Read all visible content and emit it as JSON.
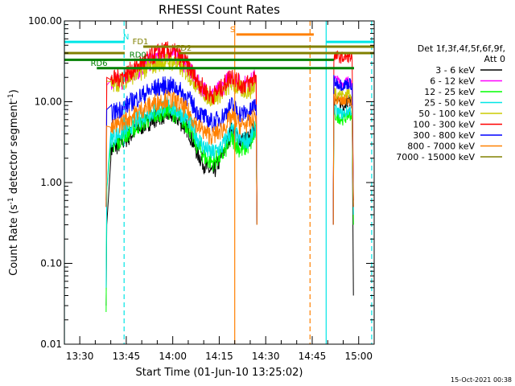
{
  "chart_data": {
    "type": "line",
    "title": "RHESSI Count Rates",
    "xlabel": "Start Time (01-Jun-10 13:25:02)",
    "ylabel_pre": "Count Rate (s",
    "ylabel_sup1": "-1",
    "ylabel_mid": " detector segment",
    "ylabel_sup2": "-1",
    "ylabel_post": ")",
    "x_range_min": [
      25.03,
      125.0
    ],
    "ylim": [
      0.01,
      100
    ],
    "y_scale": "log",
    "y_ticks": [
      {
        "value": 0.01,
        "label": "0.01"
      },
      {
        "value": 0.1,
        "label": "0.10"
      },
      {
        "value": 1,
        "label": "1.00"
      },
      {
        "value": 10,
        "label": "10.00"
      },
      {
        "value": 100,
        "label": "100.00"
      }
    ],
    "x_ticks": [
      {
        "value": 30,
        "label": "13:30"
      },
      {
        "value": 45,
        "label": "13:45"
      },
      {
        "value": 60,
        "label": "14:00"
      },
      {
        "value": 75,
        "label": "14:15"
      },
      {
        "value": 90,
        "label": "14:30"
      },
      {
        "value": 105,
        "label": "14:45"
      },
      {
        "value": 120,
        "label": "15:00"
      }
    ],
    "legend": {
      "position": "right",
      "header1": "Det 1f,3f,4f,5f,6f,9f,",
      "header2": "Att 0"
    },
    "series": [
      {
        "name": "3 - 6 keV",
        "color": "#000000",
        "base": 1.0,
        "start": [
          0.03,
          0.3
        ],
        "gap_start": 0.35,
        "ptsA": [
          [
            40,
            2.5
          ],
          [
            45,
            3.5
          ],
          [
            50,
            5
          ],
          [
            55,
            6.5
          ],
          [
            58,
            7
          ],
          [
            61,
            6.5
          ],
          [
            65,
            4.5
          ],
          [
            68,
            2.3
          ],
          [
            71,
            1.5
          ],
          [
            73,
            1.3
          ],
          [
            76,
            2.2
          ],
          [
            79,
            4.5
          ],
          [
            82,
            3.2
          ],
          [
            85,
            3.5
          ],
          [
            87,
            5.5
          ]
        ],
        "ptsB": [
          [
            112,
            10.5
          ],
          [
            113,
            10
          ],
          [
            115,
            9
          ],
          [
            117,
            10.5
          ],
          [
            118,
            9.5
          ]
        ],
        "end": [
          0.04,
          0.3
        ]
      },
      {
        "name": "6 - 12 keV",
        "color": "#ff00ff",
        "base": 1.0,
        "start": [
          0.5,
          16
        ],
        "gap_start": 15,
        "ptsA": [
          [
            40,
            16
          ],
          [
            45,
            19
          ],
          [
            50,
            26
          ],
          [
            55,
            36
          ],
          [
            58,
            40
          ],
          [
            61,
            38
          ],
          [
            65,
            26
          ],
          [
            68,
            17
          ],
          [
            71,
            13
          ],
          [
            73,
            12
          ],
          [
            76,
            15
          ],
          [
            79,
            21
          ],
          [
            82,
            16
          ],
          [
            85,
            17
          ],
          [
            87,
            21
          ]
        ],
        "ptsB": [
          [
            112,
            19
          ],
          [
            113,
            18
          ],
          [
            115,
            17
          ],
          [
            117,
            18
          ],
          [
            118,
            17
          ]
        ],
        "end": [
          0.6,
          0.3
        ]
      },
      {
        "name": "12 - 25 keV",
        "color": "#00ff00",
        "base": 1.0,
        "start": [
          0.025,
          0.8
        ],
        "gap_start": 0.5,
        "ptsA": [
          [
            40,
            2.8
          ],
          [
            45,
            4
          ],
          [
            50,
            5.5
          ],
          [
            55,
            7
          ],
          [
            58,
            8
          ],
          [
            61,
            7
          ],
          [
            65,
            5
          ],
          [
            68,
            2.8
          ],
          [
            71,
            1.9
          ],
          [
            73,
            1.8
          ],
          [
            76,
            2.2
          ],
          [
            79,
            3.5
          ],
          [
            82,
            2.5
          ],
          [
            85,
            3
          ],
          [
            87,
            4.5
          ]
        ],
        "ptsB": [
          [
            112,
            7
          ],
          [
            113,
            6.5
          ],
          [
            115,
            6
          ],
          [
            117,
            7
          ],
          [
            118,
            6.5
          ]
        ],
        "end": [
          0.3,
          0.3
        ]
      },
      {
        "name": "25 - 50 keV",
        "color": "#00e6e6",
        "base": 1.0,
        "start": [
          0.05,
          0.8
        ],
        "gap_start": 0.6,
        "ptsA": [
          [
            40,
            3.5
          ],
          [
            45,
            4.5
          ],
          [
            50,
            6.5
          ],
          [
            55,
            8
          ],
          [
            58,
            9
          ],
          [
            61,
            8
          ],
          [
            65,
            6
          ],
          [
            68,
            3.5
          ],
          [
            71,
            2.5
          ],
          [
            73,
            2.3
          ],
          [
            76,
            2.8
          ],
          [
            79,
            4.5
          ],
          [
            82,
            3.2
          ],
          [
            85,
            3.5
          ],
          [
            87,
            5
          ]
        ],
        "ptsB": [
          [
            112,
            8
          ],
          [
            113,
            7.5
          ],
          [
            115,
            7
          ],
          [
            117,
            8
          ],
          [
            118,
            7.5
          ]
        ],
        "end": [
          0.4,
          0.3
        ]
      },
      {
        "name": "50 - 100 keV",
        "color": "#cccc00",
        "base": 1.0,
        "start": [
          0.5,
          18
        ],
        "gap_start": 16,
        "ptsA": [
          [
            40,
            16
          ],
          [
            45,
            19
          ],
          [
            50,
            24
          ],
          [
            55,
            30
          ],
          [
            58,
            32
          ],
          [
            61,
            30
          ],
          [
            65,
            22
          ],
          [
            68,
            16
          ],
          [
            71,
            12
          ],
          [
            73,
            11
          ],
          [
            76,
            13
          ],
          [
            79,
            17
          ],
          [
            82,
            14
          ],
          [
            85,
            14
          ],
          [
            87,
            17
          ]
        ],
        "ptsB": [
          [
            112,
            14
          ],
          [
            113,
            13
          ],
          [
            115,
            12
          ],
          [
            117,
            13
          ],
          [
            118,
            12
          ]
        ],
        "end": [
          0.5,
          0.3
        ]
      },
      {
        "name": "100 - 300 keV",
        "color": "#ff0000",
        "base": 1.0,
        "start": [
          0.6,
          20
        ],
        "gap_start": 18,
        "ptsA": [
          [
            40,
            18
          ],
          [
            45,
            22
          ],
          [
            50,
            30
          ],
          [
            55,
            40
          ],
          [
            58,
            43
          ],
          [
            61,
            40
          ],
          [
            65,
            28
          ],
          [
            68,
            18
          ],
          [
            71,
            13
          ],
          [
            73,
            12
          ],
          [
            76,
            15
          ],
          [
            79,
            22
          ],
          [
            82,
            16
          ],
          [
            85,
            17
          ],
          [
            87,
            22
          ]
        ],
        "ptsB": [
          [
            112,
            36
          ],
          [
            113,
            36
          ],
          [
            115,
            35
          ],
          [
            117,
            36
          ],
          [
            118,
            34
          ]
        ],
        "end": [
          0.6,
          0.3
        ]
      },
      {
        "name": "300 - 800 keV",
        "color": "#0000ff",
        "base": 1.0,
        "start": [
          0.5,
          8
        ],
        "gap_start": 7,
        "ptsA": [
          [
            40,
            7
          ],
          [
            45,
            9
          ],
          [
            50,
            12
          ],
          [
            55,
            15
          ],
          [
            58,
            16
          ],
          [
            61,
            15
          ],
          [
            65,
            11
          ],
          [
            68,
            7.5
          ],
          [
            71,
            6
          ],
          [
            73,
            5.5
          ],
          [
            76,
            6.5
          ],
          [
            79,
            9
          ],
          [
            82,
            7
          ],
          [
            85,
            7.5
          ],
          [
            87,
            10
          ]
        ],
        "ptsB": [
          [
            112,
            18
          ],
          [
            113,
            17
          ],
          [
            115,
            16
          ],
          [
            117,
            17
          ],
          [
            118,
            16
          ]
        ],
        "end": [
          0.5,
          0.3
        ]
      },
      {
        "name": "800 - 7000 keV",
        "color": "#ff8000",
        "base": 1.0,
        "start": [
          0.5,
          5
        ],
        "gap_start": 4,
        "ptsA": [
          [
            40,
            4.5
          ],
          [
            45,
            6
          ],
          [
            50,
            8
          ],
          [
            55,
            10
          ],
          [
            58,
            11
          ],
          [
            61,
            10
          ],
          [
            65,
            7.5
          ],
          [
            68,
            5
          ],
          [
            71,
            4
          ],
          [
            73,
            3.8
          ],
          [
            76,
            4.5
          ],
          [
            79,
            6.5
          ],
          [
            82,
            5
          ],
          [
            85,
            5.5
          ],
          [
            87,
            7
          ]
        ],
        "ptsB": [
          [
            112,
            11
          ],
          [
            113,
            10.5
          ],
          [
            115,
            10
          ],
          [
            117,
            11
          ],
          [
            118,
            10
          ]
        ],
        "end": [
          0.5,
          0.3
        ]
      },
      {
        "name": "7000 - 15000 keV",
        "color": "#808000",
        "base": 1.0,
        "start": [
          0.3,
          3
        ],
        "gap_start": 3,
        "ptsA": [],
        "ptsB": [],
        "end": [
          0.3,
          0.3
        ]
      }
    ],
    "attenuator_segments": [
      {
        "label": "N",
        "color": "#00e6e6",
        "y": 55,
        "x0": 25.03,
        "x1": 44.5,
        "label_x": 44.0
      },
      {
        "label": "N",
        "color": "#00e6e6",
        "y": 55,
        "x0": 109.5,
        "x1": 125.0,
        "label_x": null
      },
      {
        "label": "S",
        "color": "#ff8000",
        "y": 68,
        "x0": 80.5,
        "x1": 105.5,
        "label_x": 78.5
      },
      {
        "label": "FD1",
        "color": "#808000",
        "y": 48,
        "x0": 50.5,
        "x1": 125.0,
        "label_x": 47.0
      },
      {
        "label": "FD1",
        "color": "#808000",
        "y": 40,
        "x0": 25.03,
        "x1": 44.5,
        "label_x": null
      },
      {
        "label": "FD2",
        "color": "#808000",
        "y": 40,
        "x0": 62.0,
        "x1": 125.0,
        "label_x": 61.0
      },
      {
        "label": "RD0",
        "color": "#008000",
        "y": 33,
        "x0": 25.03,
        "x1": 112.0,
        "label_x": 46.0
      },
      {
        "label": "RD6",
        "color": "#008000",
        "y": 26,
        "x0": 35.5,
        "x1": 118.5,
        "label_x": 33.5
      }
    ],
    "vertical_lines": [
      {
        "x": 25.03,
        "color": "#00e6e6",
        "style": "solid"
      },
      {
        "x": 44.3,
        "color": "#00e6e6",
        "style": "dashed"
      },
      {
        "x": 80.0,
        "color": "#ff8000",
        "style": "solid"
      },
      {
        "x": 104.3,
        "color": "#ff8000",
        "style": "dashed"
      },
      {
        "x": 109.5,
        "color": "#00e6e6",
        "style": "solid"
      },
      {
        "x": 124.2,
        "color": "#00e6e6",
        "style": "dashed"
      }
    ]
  },
  "timestamp": "15-Oct-2021 00:38"
}
